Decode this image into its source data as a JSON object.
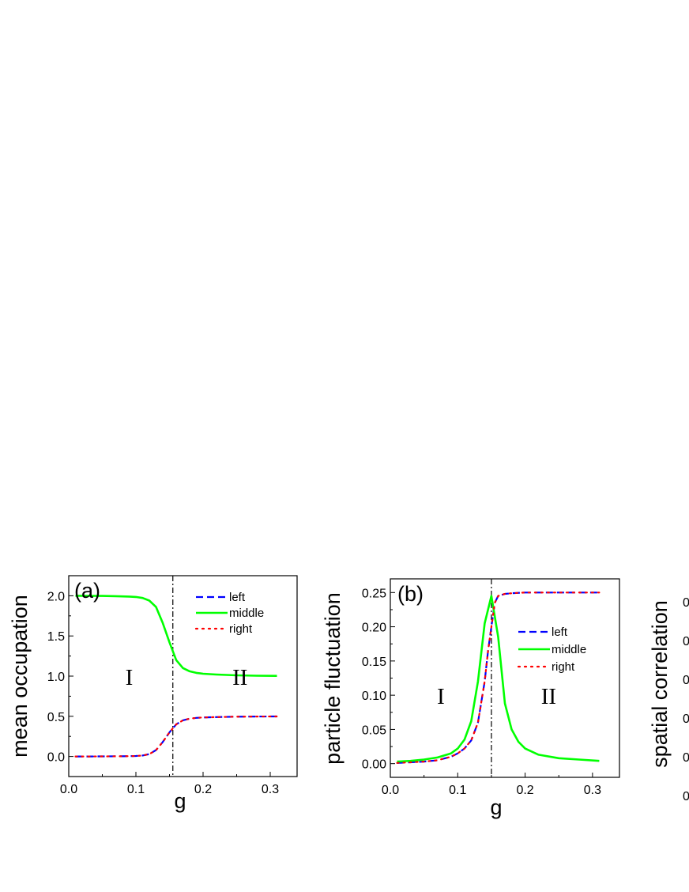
{
  "chart_data": [
    {
      "type": "line",
      "panel_label": "(a)",
      "xlabel": "g",
      "ylabel": "mean occupation",
      "xlim": [
        0.0,
        0.34
      ],
      "ylim": [
        -0.25,
        2.25
      ],
      "x_ticks": [
        "0.0",
        "0.1",
        "0.2",
        "0.3"
      ],
      "y_ticks": [
        "0.0",
        "0.5",
        "1.0",
        "1.5",
        "2.0"
      ],
      "x_tick_values": [
        0.0,
        0.1,
        0.2,
        0.3
      ],
      "y_tick_values": [
        0.0,
        0.5,
        1.0,
        1.5,
        2.0
      ],
      "vline_x": 0.155,
      "regions": [
        {
          "text": "I",
          "x": 0.09,
          "y": 1.0
        },
        {
          "text": "II",
          "x": 0.255,
          "y": 1.0
        }
      ],
      "legend": [
        "left",
        "middle",
        "right"
      ],
      "legend_position": "top-right",
      "series": [
        {
          "name": "left",
          "color": "#0000ff",
          "style": "dash",
          "x": [
            0.01,
            0.03,
            0.05,
            0.07,
            0.09,
            0.1,
            0.11,
            0.12,
            0.13,
            0.14,
            0.15,
            0.16,
            0.17,
            0.18,
            0.19,
            0.2,
            0.22,
            0.25,
            0.28,
            0.31
          ],
          "y": [
            0.0,
            0.0,
            0.001,
            0.002,
            0.004,
            0.006,
            0.012,
            0.03,
            0.08,
            0.18,
            0.3,
            0.4,
            0.45,
            0.47,
            0.48,
            0.485,
            0.49,
            0.495,
            0.497,
            0.498
          ]
        },
        {
          "name": "middle",
          "color": "#00ff00",
          "style": "solid",
          "x": [
            0.01,
            0.03,
            0.05,
            0.07,
            0.09,
            0.1,
            0.11,
            0.12,
            0.13,
            0.14,
            0.15,
            0.16,
            0.17,
            0.18,
            0.19,
            0.2,
            0.22,
            0.25,
            0.28,
            0.31
          ],
          "y": [
            2.0,
            1.999,
            1.998,
            1.995,
            1.99,
            1.985,
            1.972,
            1.94,
            1.86,
            1.66,
            1.42,
            1.2,
            1.1,
            1.06,
            1.04,
            1.03,
            1.02,
            1.01,
            1.005,
            1.003
          ]
        },
        {
          "name": "right",
          "color": "#ff0000",
          "style": "dot",
          "x": [
            0.01,
            0.03,
            0.05,
            0.07,
            0.09,
            0.1,
            0.11,
            0.12,
            0.13,
            0.14,
            0.15,
            0.16,
            0.17,
            0.18,
            0.19,
            0.2,
            0.22,
            0.25,
            0.28,
            0.31
          ],
          "y": [
            0.0,
            0.0,
            0.001,
            0.002,
            0.004,
            0.006,
            0.012,
            0.03,
            0.08,
            0.18,
            0.3,
            0.4,
            0.45,
            0.47,
            0.48,
            0.485,
            0.49,
            0.495,
            0.497,
            0.498
          ]
        }
      ]
    },
    {
      "type": "line",
      "panel_label": "(b)",
      "xlabel": "g",
      "ylabel": "particle fluctuation",
      "xlim": [
        0.0,
        0.34
      ],
      "ylim": [
        -0.02,
        0.27
      ],
      "x_ticks": [
        "0.0",
        "0.1",
        "0.2",
        "0.3"
      ],
      "y_ticks": [
        "0.00",
        "0.05",
        "0.10",
        "0.15",
        "0.20",
        "0.25"
      ],
      "x_tick_values": [
        0.0,
        0.1,
        0.2,
        0.3
      ],
      "y_tick_values": [
        0.0,
        0.05,
        0.1,
        0.15,
        0.2,
        0.25
      ],
      "vline_x": 0.15,
      "regions": [
        {
          "text": "I",
          "x": 0.075,
          "y": 0.1
        },
        {
          "text": "II",
          "x": 0.235,
          "y": 0.1
        }
      ],
      "legend": [
        "left",
        "middle",
        "right"
      ],
      "legend_position": "right",
      "series": [
        {
          "name": "left",
          "color": "#0000ff",
          "style": "dash",
          "x": [
            0.01,
            0.03,
            0.05,
            0.07,
            0.09,
            0.1,
            0.11,
            0.12,
            0.13,
            0.14,
            0.145,
            0.15,
            0.155,
            0.16,
            0.17,
            0.18,
            0.2,
            0.25,
            0.31
          ],
          "y": [
            0.001,
            0.002,
            0.003,
            0.005,
            0.01,
            0.015,
            0.022,
            0.034,
            0.06,
            0.12,
            0.165,
            0.2,
            0.235,
            0.245,
            0.248,
            0.249,
            0.25,
            0.25,
            0.25
          ]
        },
        {
          "name": "middle",
          "color": "#00ff00",
          "style": "solid",
          "x": [
            0.01,
            0.03,
            0.05,
            0.07,
            0.09,
            0.1,
            0.11,
            0.12,
            0.13,
            0.14,
            0.15,
            0.16,
            0.17,
            0.18,
            0.19,
            0.2,
            0.22,
            0.25,
            0.28,
            0.31
          ],
          "y": [
            0.003,
            0.004,
            0.006,
            0.009,
            0.015,
            0.022,
            0.035,
            0.062,
            0.12,
            0.205,
            0.245,
            0.185,
            0.088,
            0.05,
            0.032,
            0.022,
            0.013,
            0.008,
            0.006,
            0.004
          ]
        },
        {
          "name": "right",
          "color": "#ff0000",
          "style": "dot",
          "x": [
            0.01,
            0.03,
            0.05,
            0.07,
            0.09,
            0.1,
            0.11,
            0.12,
            0.13,
            0.14,
            0.145,
            0.15,
            0.155,
            0.16,
            0.17,
            0.18,
            0.2,
            0.25,
            0.31
          ],
          "y": [
            0.001,
            0.002,
            0.003,
            0.005,
            0.01,
            0.015,
            0.022,
            0.034,
            0.06,
            0.12,
            0.165,
            0.2,
            0.235,
            0.245,
            0.248,
            0.249,
            0.25,
            0.25,
            0.25
          ]
        }
      ]
    },
    {
      "type": "line",
      "ylabel": "spatial correlation",
      "y_ticks": [
        "0",
        "0",
        "0",
        "0",
        "0",
        "0"
      ]
    }
  ]
}
